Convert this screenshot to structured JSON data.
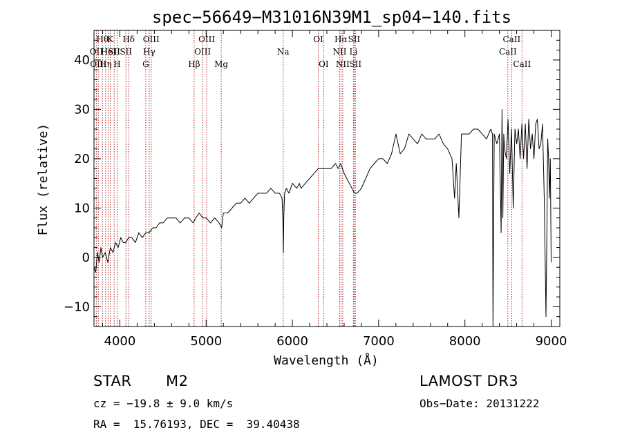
{
  "chart_data": {
    "type": "line",
    "title": "spec−56649−M31016N39M1_sp04−140.fits",
    "xlabel": "Wavelength (Å)",
    "ylabel": "Flux (relative)",
    "xlim": [
      3700,
      9100
    ],
    "ylim": [
      -14,
      46
    ],
    "xticks": [
      4000,
      5000,
      6000,
      7000,
      8000,
      9000
    ],
    "xtick_labels": [
      "4000",
      "5000",
      "6000",
      "7000",
      "8000",
      "9000"
    ],
    "yticks": [
      -10,
      0,
      10,
      20,
      30,
      40
    ],
    "ytick_labels": [
      "−10",
      "0",
      "10",
      "20",
      "30",
      "40"
    ],
    "grid": false,
    "series": [
      {
        "name": "spectrum",
        "x": [
          3700,
          3720,
          3740,
          3760,
          3780,
          3800,
          3830,
          3860,
          3890,
          3920,
          3950,
          3980,
          4010,
          4040,
          4070,
          4100,
          4140,
          4180,
          4220,
          4260,
          4300,
          4340,
          4380,
          4420,
          4460,
          4500,
          4550,
          4600,
          4650,
          4700,
          4750,
          4800,
          4850,
          4880,
          4920,
          4960,
          5000,
          5050,
          5100,
          5150,
          5180,
          5200,
          5250,
          5300,
          5350,
          5400,
          5450,
          5500,
          5550,
          5600,
          5650,
          5700,
          5750,
          5800,
          5850,
          5880,
          5890,
          5895,
          5900,
          5910,
          5930,
          5960,
          6000,
          6050,
          6080,
          6100,
          6150,
          6200,
          6250,
          6300,
          6350,
          6400,
          6450,
          6500,
          6530,
          6560,
          6600,
          6630,
          6660,
          6690,
          6720,
          6750,
          6800,
          6850,
          6900,
          6950,
          7000,
          7050,
          7100,
          7150,
          7200,
          7250,
          7300,
          7350,
          7400,
          7450,
          7500,
          7550,
          7600,
          7650,
          7700,
          7750,
          7800,
          7850,
          7880,
          7900,
          7930,
          7960,
          8000,
          8050,
          8100,
          8150,
          8200,
          8250,
          8300,
          8320,
          8325,
          8340,
          8370,
          8400,
          8420,
          8430,
          8440,
          8450,
          8460,
          8480,
          8500,
          8520,
          8540,
          8560,
          8580,
          8600,
          8620,
          8640,
          8660,
          8680,
          8700,
          8720,
          8740,
          8760,
          8780,
          8800,
          8820,
          8840,
          8860,
          8880,
          8900,
          8920,
          8940,
          8950,
          8960,
          8970,
          8980,
          8990,
          9000
        ],
        "y": [
          -2,
          -3,
          1,
          -1,
          2,
          0,
          1,
          -1,
          2,
          1,
          3,
          2,
          4,
          3,
          3,
          4,
          4,
          3,
          5,
          4,
          5,
          5,
          6,
          6,
          7,
          7,
          8,
          8,
          8,
          7,
          8,
          8,
          7,
          8,
          9,
          8,
          8,
          7,
          8,
          7,
          6,
          9,
          9,
          10,
          11,
          11,
          12,
          11,
          12,
          13,
          13,
          13,
          14,
          13,
          13,
          12,
          8,
          1,
          8,
          13,
          14,
          13,
          15,
          14,
          15,
          14,
          15,
          16,
          17,
          18,
          18,
          18,
          18,
          19,
          18,
          19,
          17,
          16,
          15,
          14,
          13,
          13,
          14,
          16,
          18,
          19,
          20,
          20,
          19,
          21,
          25,
          21,
          22,
          25,
          24,
          23,
          25,
          24,
          24,
          24,
          25,
          23,
          22,
          20,
          12,
          19,
          8,
          25,
          25,
          25,
          26,
          26,
          25,
          24,
          26,
          25,
          -14,
          25,
          23,
          25,
          5,
          30,
          8,
          25,
          22,
          20,
          28,
          17,
          26,
          10,
          26,
          23,
          26,
          20,
          27,
          20,
          27,
          18,
          28,
          22,
          25,
          20,
          27,
          28,
          22,
          23,
          27,
          12,
          -12,
          5,
          24,
          20,
          12,
          20,
          -1
        ]
      }
    ],
    "spectral_lines": [
      {
        "wl": 3727,
        "label": "OII",
        "row": 1
      },
      {
        "wl": 3750,
        "label": "OIII",
        "row": 2
      },
      {
        "wl": 3798,
        "label": "Hθ",
        "row": 0
      },
      {
        "wl": 3835,
        "label": "Hη",
        "row": 2
      },
      {
        "wl": 3868,
        "label": "HeI",
        "row": 1
      },
      {
        "wl": 3889,
        "label": "K",
        "row": 0
      },
      {
        "wl": 3934,
        "label": "SII",
        "row": 1
      },
      {
        "wl": 3968,
        "label": "H",
        "row": 2
      },
      {
        "wl": 4102,
        "label": "Hδ",
        "row": 0
      },
      {
        "wl": 4070,
        "label": "SII",
        "row": 1
      },
      {
        "wl": 4300,
        "label": "G",
        "row": 2
      },
      {
        "wl": 4340,
        "label": "Hγ",
        "row": 1
      },
      {
        "wl": 4363,
        "label": "OIII",
        "row": 0
      },
      {
        "wl": 4861,
        "label": "Hβ",
        "row": 2
      },
      {
        "wl": 4959,
        "label": "OIII",
        "row": 1
      },
      {
        "wl": 5007,
        "label": "OIII",
        "row": 0
      },
      {
        "wl": 5175,
        "label": "Mg",
        "row": 2
      },
      {
        "wl": 5893,
        "label": "Na",
        "row": 1
      },
      {
        "wl": 6300,
        "label": "OI",
        "row": 0
      },
      {
        "wl": 6363,
        "label": "OI",
        "row": 2
      },
      {
        "wl": 6548,
        "label": "NII",
        "row": 1
      },
      {
        "wl": 6563,
        "label": "Hα",
        "row": 0
      },
      {
        "wl": 6583,
        "label": "NII",
        "row": 2
      },
      {
        "wl": 6708,
        "label": "Li",
        "row": 1
      },
      {
        "wl": 6716,
        "label": "SII",
        "row": 0
      },
      {
        "wl": 6731,
        "label": "SII",
        "row": 2
      },
      {
        "wl": 8498,
        "label": "CaII",
        "row": 1
      },
      {
        "wl": 8542,
        "label": "CaII",
        "row": 0
      },
      {
        "wl": 8662,
        "label": "CaII",
        "row": 2
      }
    ]
  },
  "info": {
    "object_class": "STAR",
    "subclass": "M2",
    "survey": "LAMOST DR3",
    "cz": "cz = −19.8 ± 9.0 km/s",
    "obs_date": "Obs−Date: 20131222",
    "coords": "RA =  15.76193, DEC =  39.40438"
  },
  "colors": {
    "line_marker": "#b22222",
    "spectrum": "#000000",
    "axes": "#000000"
  }
}
